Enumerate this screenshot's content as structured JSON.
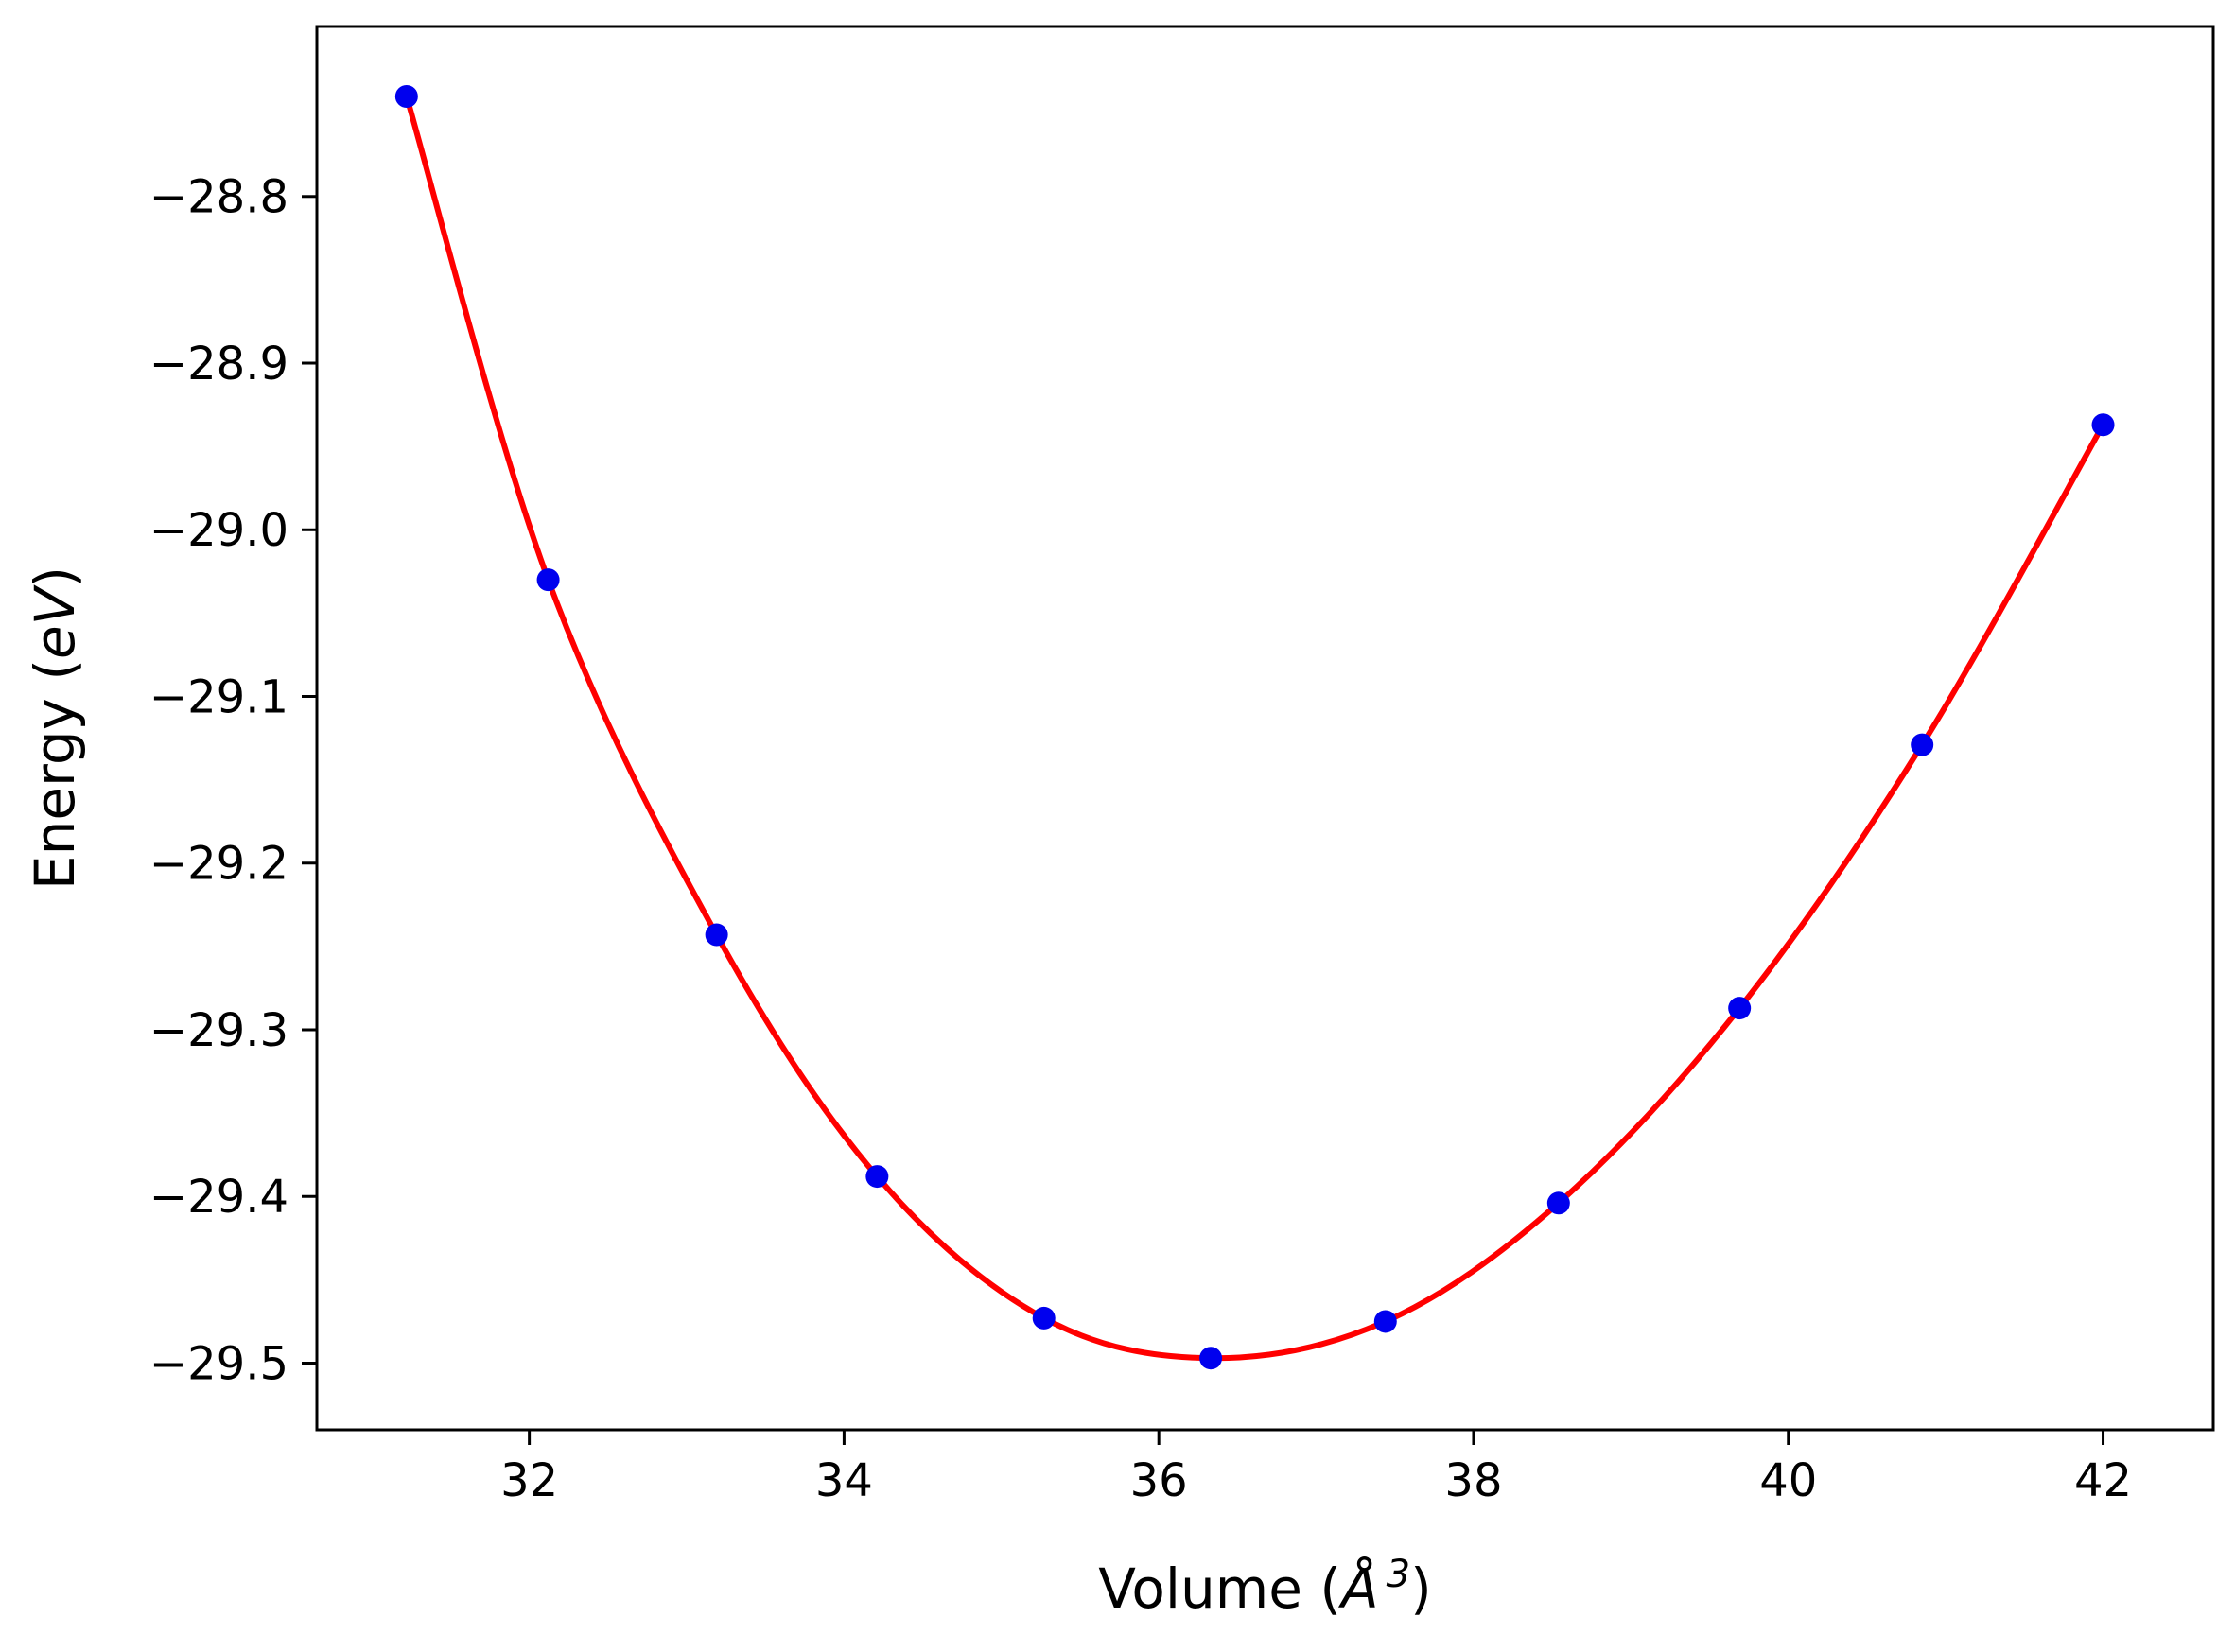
{
  "chart_data": {
    "type": "scatter",
    "title": "",
    "xlabel": {
      "prefix": "Volume (",
      "math": "Å",
      "sup": "3",
      "suffix": ")"
    },
    "ylabel": {
      "prefix": "Energy (",
      "math": "eV",
      "suffix": ")"
    },
    "x": [
      31.22,
      32.12,
      33.19,
      34.21,
      35.27,
      36.33,
      37.44,
      38.54,
      39.69,
      40.85,
      42.0
    ],
    "y": [
      -28.74,
      -29.03,
      -29.243,
      -29.388,
      -29.473,
      -29.497,
      -29.475,
      -29.404,
      -29.287,
      -29.129,
      -28.937
    ],
    "series": [
      {
        "name": "fitted-eos-curve",
        "type": "line",
        "color": "#ff0000"
      },
      {
        "name": "calculated-points",
        "type": "scatter",
        "color": "#0000ee"
      }
    ],
    "xlim": [
      30.65,
      42.7
    ],
    "ylim": [
      -29.54,
      -28.698
    ],
    "xticks": [
      {
        "value": 32,
        "label": "32"
      },
      {
        "value": 34,
        "label": "34"
      },
      {
        "value": 36,
        "label": "36"
      },
      {
        "value": 38,
        "label": "38"
      },
      {
        "value": 40,
        "label": "40"
      },
      {
        "value": 42,
        "label": "42"
      }
    ],
    "yticks": [
      {
        "value": -28.8,
        "label": "−28.8"
      },
      {
        "value": -28.9,
        "label": "−28.9"
      },
      {
        "value": -29.0,
        "label": "−29.0"
      },
      {
        "value": -29.1,
        "label": "−29.1"
      },
      {
        "value": -29.2,
        "label": "−29.2"
      },
      {
        "value": -29.3,
        "label": "−29.3"
      },
      {
        "value": -29.4,
        "label": "−29.4"
      },
      {
        "value": -29.5,
        "label": "−29.5"
      }
    ],
    "grid": false,
    "legend": null,
    "line_color": "#ff0000",
    "marker_color": "#0000ee",
    "axes_color": "#000000",
    "background_color": "#ffffff"
  }
}
